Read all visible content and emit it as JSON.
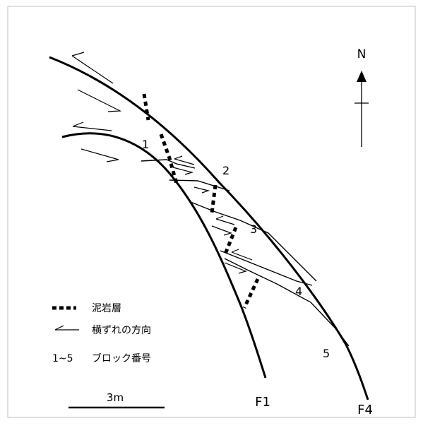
{
  "compass": {
    "label": "N"
  },
  "fault_labels": {
    "f1": "F1",
    "f4": "F4"
  },
  "block_labels": [
    "1",
    "2",
    "3",
    "4",
    "5"
  ],
  "legend": {
    "mudstone": "泥岩層",
    "strike_slip": "横ずれの方向",
    "block_range": "1~5",
    "block_number": "ブロック番号"
  },
  "scale": {
    "label": "3m"
  }
}
